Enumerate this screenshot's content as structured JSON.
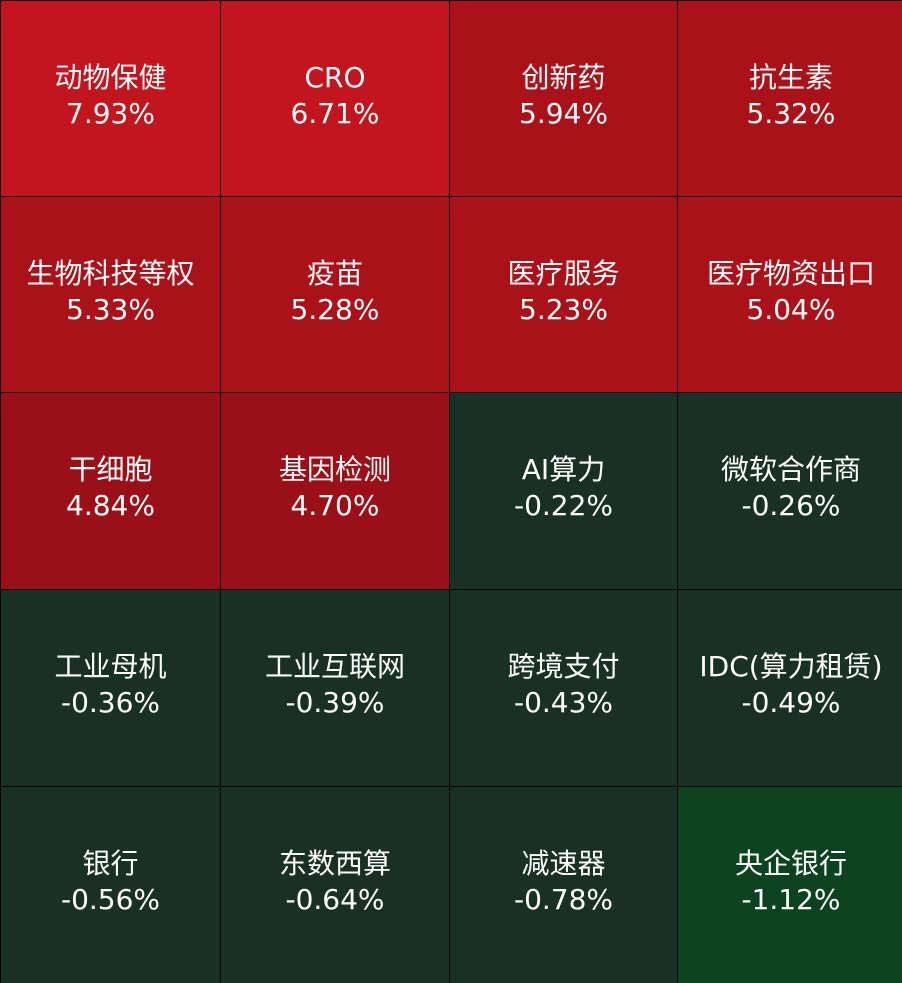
{
  "chart_data": {
    "type": "heatmap",
    "title": "",
    "layout": "grid 4 columns x 5 rows",
    "cells": [
      {
        "name": "动物保健",
        "value": 7.93,
        "label": "7.93%",
        "color": "#c2151d"
      },
      {
        "name": "CRO",
        "value": 6.71,
        "label": "6.71%",
        "color": "#c2151d"
      },
      {
        "name": "创新药",
        "value": 5.94,
        "label": "5.94%",
        "color": "#ab1118"
      },
      {
        "name": "抗生素",
        "value": 5.32,
        "label": "5.32%",
        "color": "#ab1118"
      },
      {
        "name": "生物科技等权",
        "value": 5.33,
        "label": "5.33%",
        "color": "#ab1118"
      },
      {
        "name": "疫苗",
        "value": 5.28,
        "label": "5.28%",
        "color": "#ab1118"
      },
      {
        "name": "医疗服务",
        "value": 5.23,
        "label": "5.23%",
        "color": "#ab1118"
      },
      {
        "name": "医疗物资出口",
        "value": 5.04,
        "label": "5.04%",
        "color": "#ab1118"
      },
      {
        "name": "干细胞",
        "value": 4.84,
        "label": "4.84%",
        "color": "#9b0f16"
      },
      {
        "name": "基因检测",
        "value": 4.7,
        "label": "4.70%",
        "color": "#9b0f16"
      },
      {
        "name": "AI算力",
        "value": -0.22,
        "label": "-0.22%",
        "color": "#193025"
      },
      {
        "name": "微软合作商",
        "value": -0.26,
        "label": "-0.26%",
        "color": "#193025"
      },
      {
        "name": "工业母机",
        "value": -0.36,
        "label": "-0.36%",
        "color": "#193025"
      },
      {
        "name": "工业互联网",
        "value": -0.39,
        "label": "-0.39%",
        "color": "#193025"
      },
      {
        "name": "跨境支付",
        "value": -0.43,
        "label": "-0.43%",
        "color": "#193025"
      },
      {
        "name": "IDC(算力租赁)",
        "value": -0.49,
        "label": "-0.49%",
        "color": "#193025"
      },
      {
        "name": "银行",
        "value": -0.56,
        "label": "-0.56%",
        "color": "#193025"
      },
      {
        "name": "东数西算",
        "value": -0.64,
        "label": "-0.64%",
        "color": "#193025"
      },
      {
        "name": "减速器",
        "value": -0.78,
        "label": "-0.78%",
        "color": "#193025"
      },
      {
        "name": "央企银行",
        "value": -1.12,
        "label": "-1.12%",
        "color": "#0b4321"
      }
    ],
    "text_color": "#ffffff",
    "gridline_color": "#000000"
  }
}
